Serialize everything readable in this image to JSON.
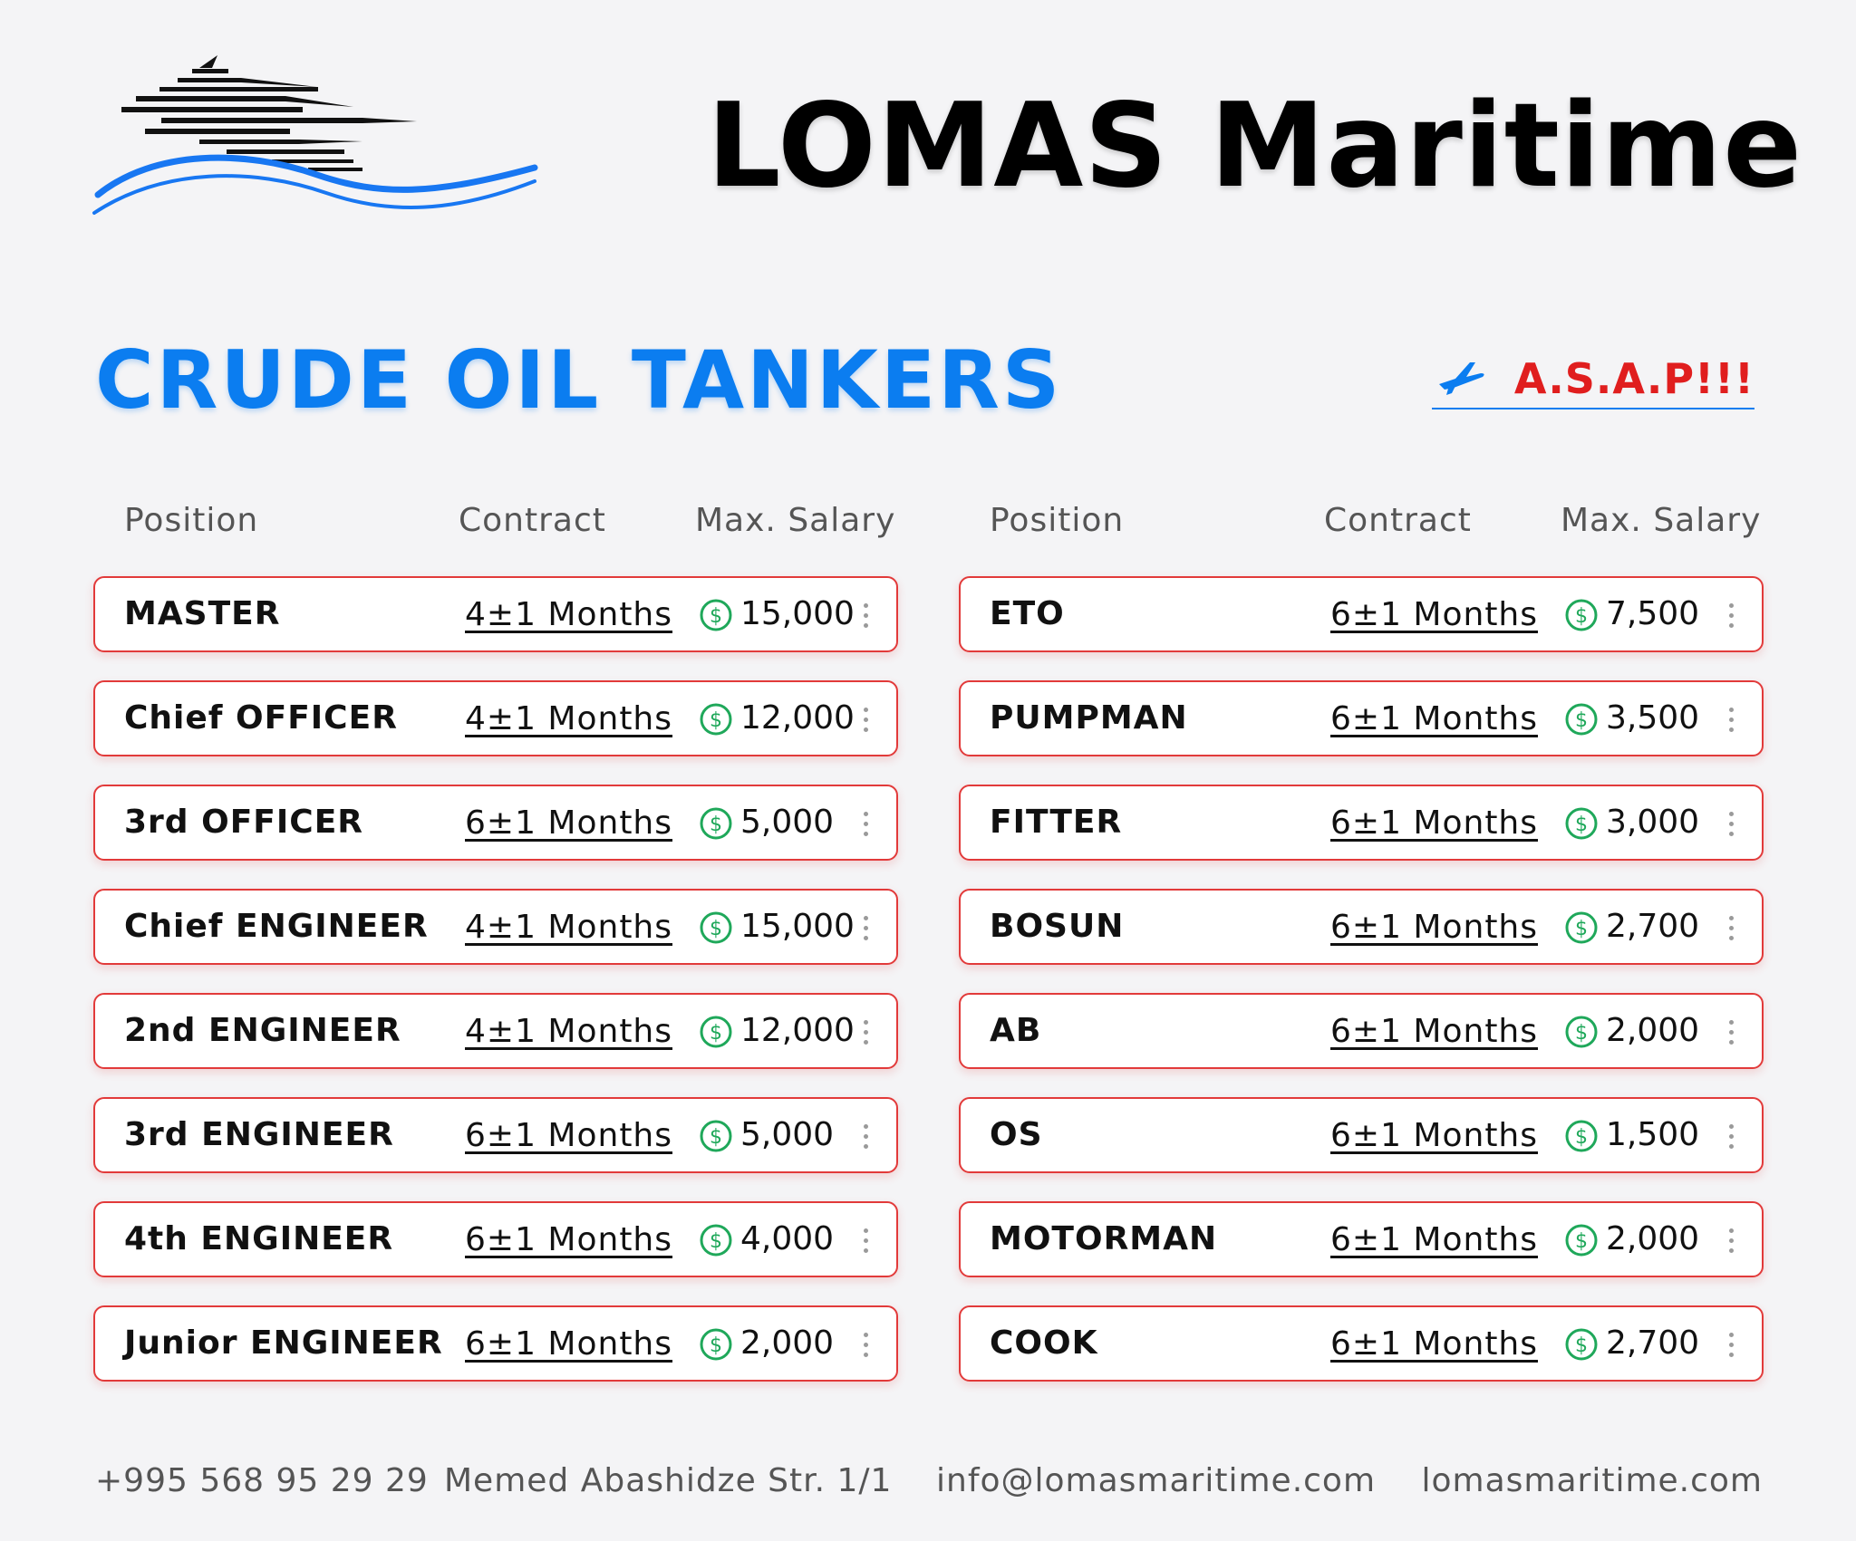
{
  "header": {
    "brand": "LOMAS Maritime",
    "logo_icon": "ship-on-waves-logo"
  },
  "section": {
    "title": "CRUDE OIL TANKERS",
    "urgency": "A.S.A.P!!!",
    "urgency_icon": "airplane-icon"
  },
  "columns": {
    "headers": {
      "position": "Position",
      "contract": "Contract",
      "salary": "Max. Salary"
    }
  },
  "left_jobs": [
    {
      "position": "MASTER",
      "contract": "4±1 Months",
      "salary": "15,000"
    },
    {
      "position": "Chief OFFICER",
      "contract": "4±1 Months",
      "salary": "12,000"
    },
    {
      "position": "3rd OFFICER",
      "contract": "6±1 Months",
      "salary": "5,000"
    },
    {
      "position": "Chief ENGINEER",
      "contract": "4±1 Months",
      "salary": "15,000"
    },
    {
      "position": "2nd ENGINEER",
      "contract": "4±1 Months",
      "salary": "12,000"
    },
    {
      "position": "3rd ENGINEER",
      "contract": "6±1 Months",
      "salary": "5,000"
    },
    {
      "position": "4th ENGINEER",
      "contract": "6±1 Months",
      "salary": "4,000"
    },
    {
      "position": "Junior ENGINEER",
      "contract": "6±1 Months",
      "salary": "2,000"
    }
  ],
  "right_jobs": [
    {
      "position": "ETO",
      "contract": "6±1 Months",
      "salary": "7,500"
    },
    {
      "position": "PUMPMAN",
      "contract": "6±1 Months",
      "salary": "3,500"
    },
    {
      "position": "FITTER",
      "contract": "6±1 Months",
      "salary": "3,000"
    },
    {
      "position": "BOSUN",
      "contract": "6±1 Months",
      "salary": "2,700"
    },
    {
      "position": "AB",
      "contract": "6±1 Months",
      "salary": "2,000"
    },
    {
      "position": "OS",
      "contract": "6±1 Months",
      "salary": "1,500"
    },
    {
      "position": "MOTORMAN",
      "contract": "6±1 Months",
      "salary": "2,000"
    },
    {
      "position": "COOK",
      "contract": "6±1 Months",
      "salary": "2,700"
    }
  ],
  "footer": {
    "phone": "+995 568 95 29 29",
    "address": "Memed Abashidze Str. 1/1",
    "email": "info@lomasmaritime.com",
    "website": "lomasmaritime.com"
  },
  "colors": {
    "accent_blue": "#0b7df0",
    "urgent_red": "#e01e1e",
    "row_border": "#e23a3a",
    "dollar_green": "#1fa85a"
  }
}
